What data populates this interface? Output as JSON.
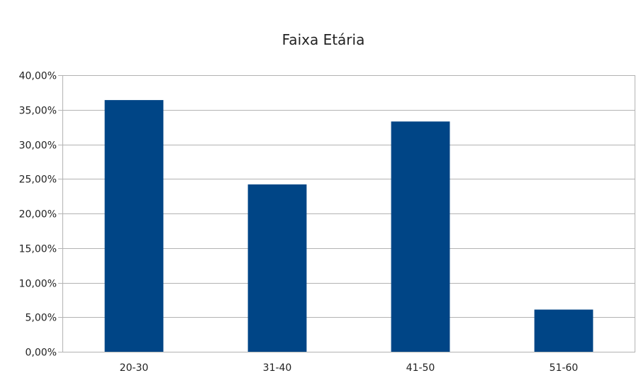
{
  "chart_data": {
    "type": "bar",
    "title": "Faixa Etária",
    "categories": [
      "20-30",
      "31-40",
      "41-50",
      "51-60"
    ],
    "values": [
      36.4,
      24.2,
      33.3,
      6.1
    ],
    "ylim": [
      0,
      40
    ],
    "yticks": [
      0,
      5,
      10,
      15,
      20,
      25,
      30,
      35,
      40
    ],
    "ytick_labels": [
      "0,00%",
      "5,00%",
      "10,00%",
      "15,00%",
      "20,00%",
      "25,00%",
      "30,00%",
      "35,00%",
      "40,00%"
    ],
    "xlabel": "",
    "ylabel": "",
    "grid": true,
    "legend": "none",
    "bar_color": "#004586"
  }
}
